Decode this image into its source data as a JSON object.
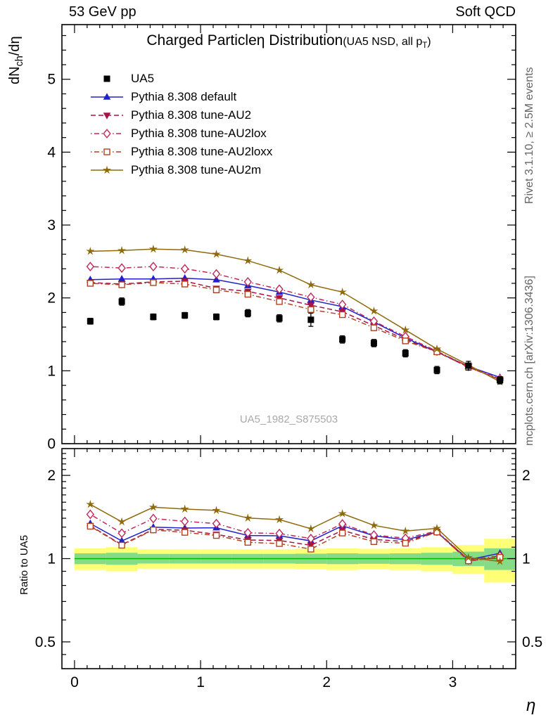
{
  "header": {
    "left": "53 GeV pp",
    "right": "Soft QCD"
  },
  "main_panel": {
    "title": "Charged Particleη Distribution",
    "subtitle_pre": "(UA5 NSD, all p",
    "subtitle_sub": "T",
    "subtitle_post": ")",
    "ylabel_pre": "dN",
    "ylabel_sub": "ch",
    "ylabel_post": "/dη",
    "watermark": "UA5_1982_S875503"
  },
  "ratio_panel": {
    "ylabel": "Ratio to UA5"
  },
  "xlabel": "η",
  "side_labels": {
    "top": "Rivet 3.1.10, ≥ 2.5M events",
    "bottom": "mcplots.cern.ch [arXiv:1306.3436]"
  },
  "chart_data": {
    "type": "line",
    "title": "Charged Particleη Distribution (UA5 NSD, all pT)",
    "xlabel": "η",
    "ylabel": "dN_ch/dη",
    "x": [
      0.125,
      0.375,
      0.625,
      0.875,
      1.125,
      1.375,
      1.625,
      1.875,
      2.125,
      2.375,
      2.625,
      2.875,
      3.125,
      3.375
    ],
    "x_bin_width": 0.25,
    "xlim": [
      -0.1,
      3.5
    ],
    "xticks": [
      0,
      1,
      2,
      3
    ],
    "main": {
      "scale": "linear",
      "ylim": [
        0,
        5.75
      ],
      "yticks": [
        0,
        1,
        2,
        3,
        4,
        5
      ]
    },
    "ratio": {
      "scale": "log",
      "ylim": [
        0.4,
        2.5
      ],
      "yticks": [
        0.5,
        1,
        2
      ],
      "ylabel": "Ratio to UA5"
    },
    "reference": {
      "name": "UA5",
      "color": "#000000",
      "marker": "square",
      "values": [
        1.68,
        1.95,
        1.74,
        1.76,
        1.74,
        1.79,
        1.72,
        1.7,
        1.43,
        1.38,
        1.24,
        1.01,
        1.07,
        0.87
      ],
      "errors": [
        0.04,
        0.05,
        0.04,
        0.04,
        0.04,
        0.05,
        0.05,
        0.09,
        0.05,
        0.05,
        0.05,
        0.05,
        0.06,
        0.05
      ]
    },
    "series": [
      {
        "name": "Pythia 8.308 default",
        "color": "#2121cc",
        "line": "solid",
        "marker": "triangle-up",
        "values": [
          2.25,
          2.26,
          2.26,
          2.27,
          2.25,
          2.17,
          2.08,
          1.97,
          1.88,
          1.67,
          1.45,
          1.26,
          1.06,
          0.91
        ]
      },
      {
        "name": "Pythia 8.308 tune-AU2",
        "color": "#a31545",
        "line": "dash",
        "marker": "triangle-down",
        "values": [
          2.21,
          2.19,
          2.22,
          2.23,
          2.13,
          2.09,
          2.0,
          1.9,
          1.81,
          1.62,
          1.43,
          1.26,
          1.05,
          0.88
        ]
      },
      {
        "name": "Pythia 8.308 tune-AU2lox",
        "color": "#c02858",
        "line": "dashdot",
        "marker": "diamond-open",
        "values": [
          2.43,
          2.41,
          2.43,
          2.4,
          2.33,
          2.22,
          2.12,
          2.01,
          1.91,
          1.68,
          1.47,
          1.27,
          1.06,
          0.89
        ]
      },
      {
        "name": "Pythia 8.308 tune-AU2loxx",
        "color": "#b1411f",
        "line": "dashdot",
        "marker": "square-open",
        "values": [
          2.2,
          2.18,
          2.21,
          2.19,
          2.11,
          2.05,
          1.95,
          1.84,
          1.77,
          1.59,
          1.41,
          1.26,
          1.05,
          0.88
        ]
      },
      {
        "name": "Pythia 8.308 tune-AU2m",
        "color": "#8e6a0c",
        "line": "solid",
        "marker": "star",
        "values": [
          2.64,
          2.65,
          2.67,
          2.66,
          2.6,
          2.51,
          2.38,
          2.18,
          2.08,
          1.82,
          1.56,
          1.3,
          1.08,
          0.85
        ]
      }
    ],
    "ratio_bands": {
      "yellow": {
        "color": "#ffff77",
        "halfwidth": [
          0.09,
          0.1,
          0.08,
          0.08,
          0.08,
          0.08,
          0.08,
          0.085,
          0.09,
          0.085,
          0.09,
          0.1,
          0.12,
          0.18
        ]
      },
      "green": {
        "color": "#86dc86",
        "halfwidth": [
          0.045,
          0.05,
          0.04,
          0.04,
          0.04,
          0.04,
          0.04,
          0.042,
          0.045,
          0.042,
          0.045,
          0.05,
          0.06,
          0.09
        ]
      },
      "line_color": "#00bb00"
    }
  }
}
